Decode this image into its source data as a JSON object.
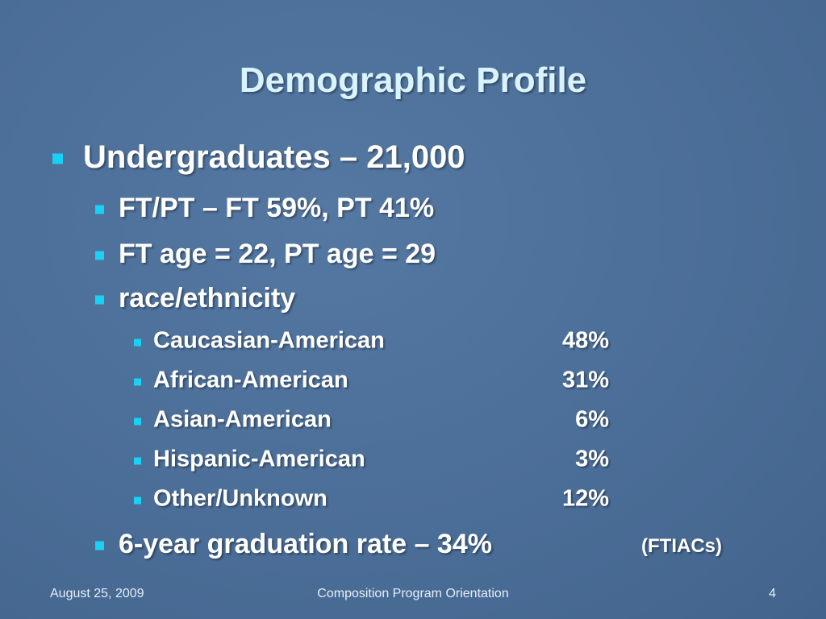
{
  "title": "Demographic Profile",
  "bullets": [
    {
      "text": "Undergraduates – 21,000",
      "items": [
        {
          "text": "FT/PT – FT 59%, PT 41%"
        },
        {
          "text": "FT age = 22, PT age = 29"
        },
        {
          "text": "race/ethnicity",
          "items": [
            {
              "label": "Caucasian-American",
              "value": "48%"
            },
            {
              "label": "African-American",
              "value": "31%"
            },
            {
              "label": "Asian-American",
              "value": "6%"
            },
            {
              "label": "Hispanic-American",
              "value": "3%"
            },
            {
              "label": "Other/Unknown",
              "value": "12%"
            }
          ]
        },
        {
          "text": "6-year graduation rate – 34%",
          "note": "(FTIACs)"
        }
      ]
    }
  ],
  "footer": {
    "date": "August 25, 2009",
    "center": "Composition Program Orientation",
    "page": "4"
  }
}
